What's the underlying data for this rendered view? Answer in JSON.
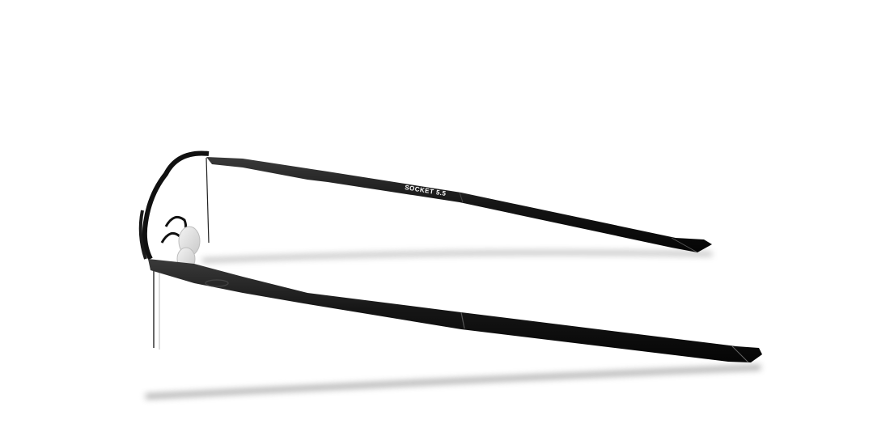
{
  "product": {
    "model_label": "SOCKET 5.5",
    "frame_color": "#111111",
    "background_color": "#ffffff",
    "logo_icon": "oakley-ellipse-icon"
  }
}
